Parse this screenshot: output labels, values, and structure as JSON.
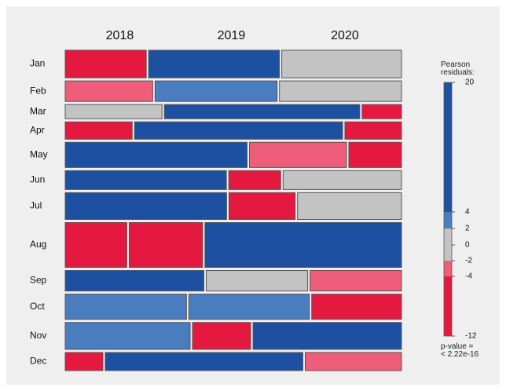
{
  "chart_data": {
    "type": "mosaic",
    "columns": [
      "2018",
      "2019",
      "2020"
    ],
    "rows": [
      {
        "label": "Jan",
        "values": [
          360,
          581,
          532
        ],
        "residuals": [
          -6,
          7,
          0
        ]
      },
      {
        "label": "Feb",
        "values": [
          289,
          403,
          403
        ],
        "residuals": [
          -3,
          3,
          0
        ]
      },
      {
        "label": "Mar",
        "values": [
          221,
          446,
          90
        ],
        "residuals": [
          0,
          6,
          -5
        ]
      },
      {
        "label": "Apr",
        "values": [
          187,
          581,
          158
        ],
        "residuals": [
          -5,
          8,
          -5
        ]
      },
      {
        "label": "May",
        "values": [
          739,
          394,
          214
        ],
        "residuals": [
          9,
          -3,
          -6
        ]
      },
      {
        "label": "Jun",
        "values": [
          490,
          158,
          360
        ],
        "residuals": [
          6,
          -5,
          0
        ]
      },
      {
        "label": "Jul",
        "values": [
          697,
          286,
          449
        ],
        "residuals": [
          7,
          -5,
          0
        ]
      },
      {
        "label": "Aug",
        "values": [
          445,
          530,
          1419
        ],
        "residuals": [
          -7,
          -6,
          14
        ]
      },
      {
        "label": "Sep",
        "values": [
          458,
          335,
          302
        ],
        "residuals": [
          5,
          0,
          -3
        ]
      },
      {
        "label": "Oct",
        "values": [
          493,
          490,
          365
        ],
        "residuals": [
          3,
          3,
          -6
        ]
      },
      {
        "label": "Nov",
        "values": [
          541,
          252,
          643
        ],
        "residuals": [
          3,
          -5,
          6
        ]
      },
      {
        "label": "Dec",
        "values": [
          110,
          577,
          281
        ],
        "residuals": [
          -6,
          9,
          -3
        ]
      }
    ],
    "legend_title": "Pearson residuals:",
    "ylim": [
      -12,
      20
    ],
    "yticks": [
      -12,
      -4,
      -2,
      0,
      2,
      4,
      20
    ],
    "band_colors": [
      "#e5193f",
      "#ee5d79",
      "#c3c3c3",
      "#c3c3c3",
      "#4a7cc0",
      "#1e50a2"
    ],
    "p_value": "p-value = < 2.22e-16"
  }
}
